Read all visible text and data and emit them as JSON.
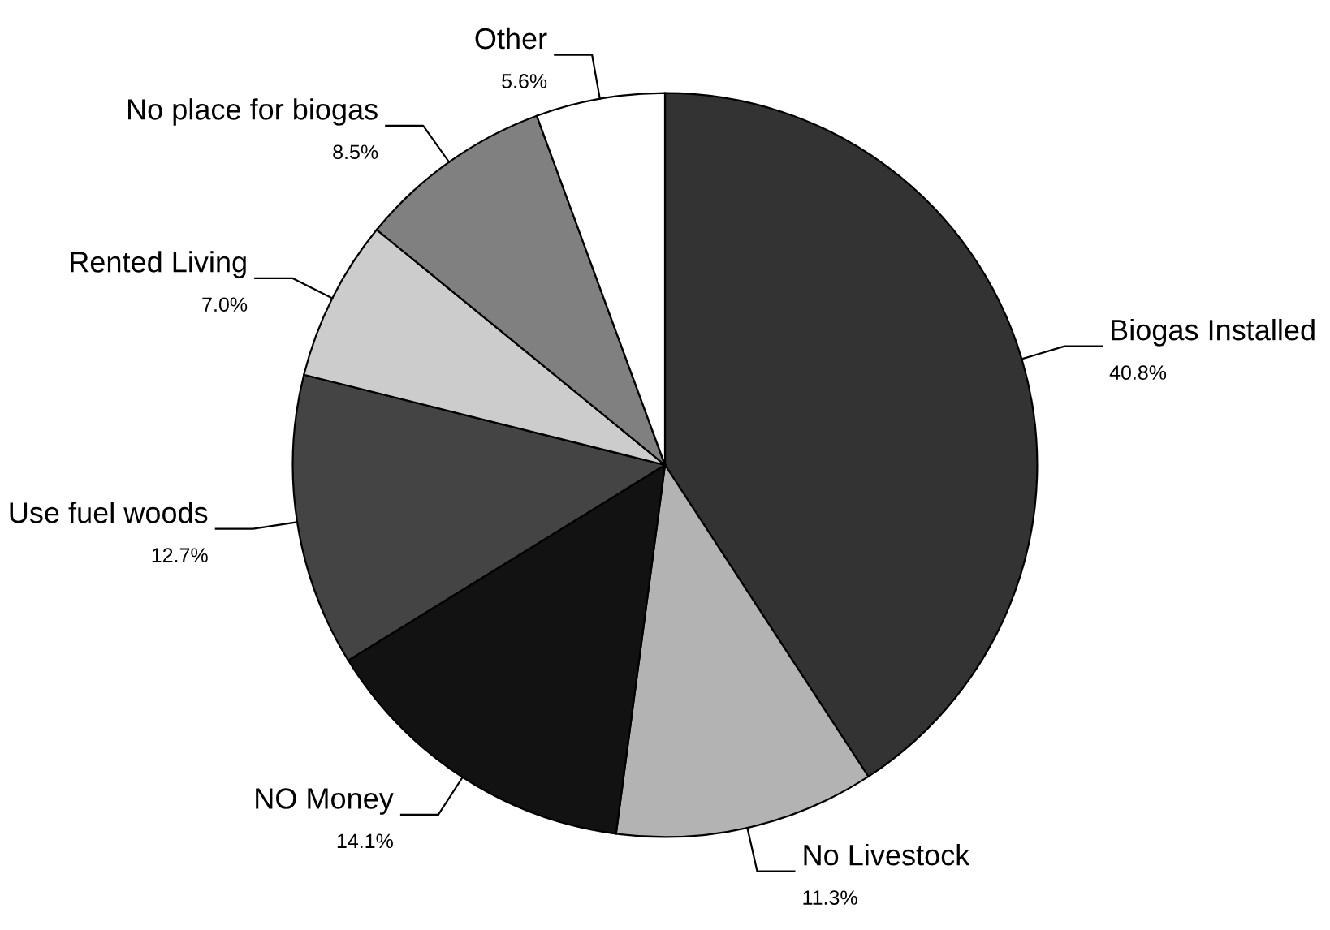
{
  "chart_data": {
    "type": "pie",
    "categories": [
      "Biogas Installed",
      "No Livestock",
      "NO Money",
      "Use fuel woods",
      "Rented Living",
      "No place for biogas",
      "Other"
    ],
    "values": [
      40.8,
      11.3,
      14.1,
      12.7,
      7.0,
      8.5,
      5.6
    ],
    "value_labels": [
      "40.8%",
      "11.3%",
      "14.1%",
      "12.7%",
      "7.0%",
      "8.5%",
      "5.6%"
    ],
    "colors": [
      "#333333",
      "#b3b3b3",
      "#121212",
      "#444444",
      "#cccccc",
      "#808080",
      "#ffffff"
    ],
    "legend": false
  }
}
